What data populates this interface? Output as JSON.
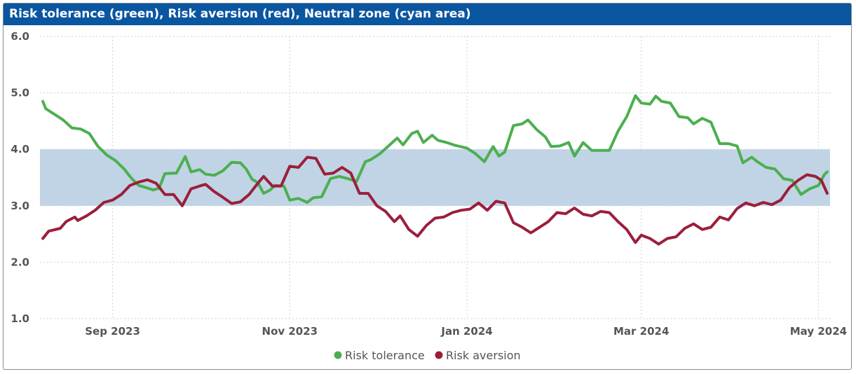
{
  "chart_data": {
    "type": "line",
    "title": "Risk tolerance (green), Risk aversion (red), Neutral zone (cyan area)",
    "ylim": [
      1.0,
      6.0
    ],
    "y_ticks": [
      "6.0",
      "5.0",
      "4.0",
      "3.0",
      "2.0",
      "1.0"
    ],
    "x_range": [
      "2023-08-07",
      "2024-05-05"
    ],
    "x_ticks": [
      {
        "label": "Sep 2023",
        "date": "2023-09-01"
      },
      {
        "label": "Nov 2023",
        "date": "2023-11-01"
      },
      {
        "label": "Jan 2024",
        "date": "2024-01-01"
      },
      {
        "label": "Mar 2024",
        "date": "2024-03-01"
      },
      {
        "label": "May 2024",
        "date": "2024-05-01"
      }
    ],
    "grid": true,
    "legend_position": "bottom-center",
    "neutral_zone": {
      "y_low": 3.0,
      "y_high": 4.0,
      "color": "#c0d4e6"
    },
    "series": [
      {
        "name": "Risk tolerance",
        "color": "#4caf50",
        "points": [
          [
            "2023-08-08",
            4.85
          ],
          [
            "2023-08-09",
            4.72
          ],
          [
            "2023-08-12",
            4.62
          ],
          [
            "2023-08-15",
            4.52
          ],
          [
            "2023-08-18",
            4.38
          ],
          [
            "2023-08-21",
            4.36
          ],
          [
            "2023-08-24",
            4.28
          ],
          [
            "2023-08-27",
            4.05
          ],
          [
            "2023-08-30",
            3.9
          ],
          [
            "2023-09-02",
            3.8
          ],
          [
            "2023-09-05",
            3.65
          ],
          [
            "2023-09-07",
            3.52
          ],
          [
            "2023-09-08",
            3.46
          ],
          [
            "2023-09-10",
            3.36
          ],
          [
            "2023-09-12",
            3.33
          ],
          [
            "2023-09-15",
            3.28
          ],
          [
            "2023-09-17",
            3.31
          ],
          [
            "2023-09-19",
            3.57
          ],
          [
            "2023-09-23",
            3.58
          ],
          [
            "2023-09-26",
            3.87
          ],
          [
            "2023-09-28",
            3.6
          ],
          [
            "2023-10-01",
            3.64
          ],
          [
            "2023-10-03",
            3.56
          ],
          [
            "2023-10-06",
            3.54
          ],
          [
            "2023-10-09",
            3.62
          ],
          [
            "2023-10-12",
            3.77
          ],
          [
            "2023-10-15",
            3.76
          ],
          [
            "2023-10-17",
            3.65
          ],
          [
            "2023-10-19",
            3.47
          ],
          [
            "2023-10-21",
            3.41
          ],
          [
            "2023-10-23",
            3.22
          ],
          [
            "2023-10-25",
            3.27
          ],
          [
            "2023-10-27",
            3.36
          ],
          [
            "2023-10-30",
            3.35
          ],
          [
            "2023-11-01",
            3.1
          ],
          [
            "2023-11-04",
            3.13
          ],
          [
            "2023-11-07",
            3.06
          ],
          [
            "2023-11-09",
            3.14
          ],
          [
            "2023-11-12",
            3.16
          ],
          [
            "2023-11-15",
            3.48
          ],
          [
            "2023-11-18",
            3.52
          ],
          [
            "2023-11-21",
            3.48
          ],
          [
            "2023-11-24",
            3.43
          ],
          [
            "2023-11-27",
            3.78
          ],
          [
            "2023-11-29",
            3.82
          ],
          [
            "2023-12-02",
            3.92
          ],
          [
            "2023-12-05",
            4.06
          ],
          [
            "2023-12-08",
            4.2
          ],
          [
            "2023-12-10",
            4.08
          ],
          [
            "2023-12-13",
            4.28
          ],
          [
            "2023-12-15",
            4.32
          ],
          [
            "2023-12-17",
            4.12
          ],
          [
            "2023-12-20",
            4.25
          ],
          [
            "2023-12-22",
            4.16
          ],
          [
            "2023-12-25",
            4.12
          ],
          [
            "2023-12-28",
            4.07
          ],
          [
            "2024-01-01",
            4.02
          ],
          [
            "2024-01-04",
            3.92
          ],
          [
            "2024-01-07",
            3.78
          ],
          [
            "2024-01-10",
            4.05
          ],
          [
            "2024-01-12",
            3.88
          ],
          [
            "2024-01-14",
            3.95
          ],
          [
            "2024-01-17",
            4.42
          ],
          [
            "2024-01-20",
            4.45
          ],
          [
            "2024-01-22",
            4.52
          ],
          [
            "2024-01-25",
            4.35
          ],
          [
            "2024-01-28",
            4.22
          ],
          [
            "2024-01-30",
            4.05
          ],
          [
            "2024-02-02",
            4.06
          ],
          [
            "2024-02-05",
            4.12
          ],
          [
            "2024-02-07",
            3.88
          ],
          [
            "2024-02-10",
            4.12
          ],
          [
            "2024-02-13",
            3.98
          ],
          [
            "2024-02-16",
            3.98
          ],
          [
            "2024-02-19",
            3.98
          ],
          [
            "2024-02-22",
            4.32
          ],
          [
            "2024-02-25",
            4.58
          ],
          [
            "2024-02-28",
            4.95
          ],
          [
            "2024-03-01",
            4.82
          ],
          [
            "2024-03-04",
            4.8
          ],
          [
            "2024-03-06",
            4.94
          ],
          [
            "2024-03-08",
            4.85
          ],
          [
            "2024-03-11",
            4.82
          ],
          [
            "2024-03-14",
            4.58
          ],
          [
            "2024-03-17",
            4.56
          ],
          [
            "2024-03-19",
            4.45
          ],
          [
            "2024-03-22",
            4.55
          ],
          [
            "2024-03-25",
            4.48
          ],
          [
            "2024-03-28",
            4.1
          ],
          [
            "2024-03-31",
            4.1
          ],
          [
            "2024-04-03",
            4.06
          ],
          [
            "2024-04-05",
            3.76
          ],
          [
            "2024-04-08",
            3.86
          ],
          [
            "2024-04-10",
            3.78
          ],
          [
            "2024-04-13",
            3.68
          ],
          [
            "2024-04-16",
            3.65
          ],
          [
            "2024-04-19",
            3.48
          ],
          [
            "2024-04-22",
            3.45
          ],
          [
            "2024-04-25",
            3.2
          ],
          [
            "2024-04-28",
            3.3
          ],
          [
            "2024-05-01",
            3.36
          ],
          [
            "2024-05-03",
            3.55
          ],
          [
            "2024-05-04",
            3.6
          ]
        ]
      },
      {
        "name": "Risk aversion",
        "color": "#9b1f3a",
        "points": [
          [
            "2023-08-08",
            2.42
          ],
          [
            "2023-08-10",
            2.55
          ],
          [
            "2023-08-14",
            2.6
          ],
          [
            "2023-08-16",
            2.72
          ],
          [
            "2023-08-19",
            2.8
          ],
          [
            "2023-08-20",
            2.74
          ],
          [
            "2023-08-23",
            2.82
          ],
          [
            "2023-08-26",
            2.92
          ],
          [
            "2023-08-29",
            3.06
          ],
          [
            "2023-09-01",
            3.1
          ],
          [
            "2023-09-04",
            3.2
          ],
          [
            "2023-09-07",
            3.36
          ],
          [
            "2023-09-10",
            3.42
          ],
          [
            "2023-09-13",
            3.46
          ],
          [
            "2023-09-16",
            3.4
          ],
          [
            "2023-09-19",
            3.2
          ],
          [
            "2023-09-22",
            3.2
          ],
          [
            "2023-09-25",
            3.0
          ],
          [
            "2023-09-28",
            3.3
          ],
          [
            "2023-10-01",
            3.35
          ],
          [
            "2023-10-03",
            3.38
          ],
          [
            "2023-10-06",
            3.25
          ],
          [
            "2023-10-09",
            3.15
          ],
          [
            "2023-10-12",
            3.04
          ],
          [
            "2023-10-15",
            3.07
          ],
          [
            "2023-10-18",
            3.2
          ],
          [
            "2023-10-21",
            3.4
          ],
          [
            "2023-10-23",
            3.52
          ],
          [
            "2023-10-26",
            3.35
          ],
          [
            "2023-10-29",
            3.35
          ],
          [
            "2023-11-01",
            3.7
          ],
          [
            "2023-11-04",
            3.68
          ],
          [
            "2023-11-07",
            3.86
          ],
          [
            "2023-11-10",
            3.84
          ],
          [
            "2023-11-13",
            3.56
          ],
          [
            "2023-11-16",
            3.58
          ],
          [
            "2023-11-19",
            3.68
          ],
          [
            "2023-11-22",
            3.58
          ],
          [
            "2023-11-25",
            3.22
          ],
          [
            "2023-11-28",
            3.22
          ],
          [
            "2023-12-01",
            3.0
          ],
          [
            "2023-12-04",
            2.9
          ],
          [
            "2023-12-07",
            2.72
          ],
          [
            "2023-12-09",
            2.82
          ],
          [
            "2023-12-12",
            2.58
          ],
          [
            "2023-12-15",
            2.46
          ],
          [
            "2023-12-18",
            2.65
          ],
          [
            "2023-12-21",
            2.78
          ],
          [
            "2023-12-24",
            2.8
          ],
          [
            "2023-12-27",
            2.88
          ],
          [
            "2023-12-30",
            2.92
          ],
          [
            "2024-01-02",
            2.94
          ],
          [
            "2024-01-05",
            3.05
          ],
          [
            "2024-01-08",
            2.92
          ],
          [
            "2024-01-11",
            3.08
          ],
          [
            "2024-01-14",
            3.05
          ],
          [
            "2024-01-17",
            2.7
          ],
          [
            "2024-01-20",
            2.62
          ],
          [
            "2024-01-23",
            2.52
          ],
          [
            "2024-01-26",
            2.62
          ],
          [
            "2024-01-29",
            2.72
          ],
          [
            "2024-02-01",
            2.88
          ],
          [
            "2024-02-04",
            2.86
          ],
          [
            "2024-02-07",
            2.96
          ],
          [
            "2024-02-10",
            2.85
          ],
          [
            "2024-02-13",
            2.82
          ],
          [
            "2024-02-16",
            2.9
          ],
          [
            "2024-02-19",
            2.88
          ],
          [
            "2024-02-22",
            2.72
          ],
          [
            "2024-02-25",
            2.58
          ],
          [
            "2024-02-28",
            2.35
          ],
          [
            "2024-03-01",
            2.48
          ],
          [
            "2024-03-04",
            2.42
          ],
          [
            "2024-03-07",
            2.32
          ],
          [
            "2024-03-10",
            2.42
          ],
          [
            "2024-03-13",
            2.45
          ],
          [
            "2024-03-16",
            2.6
          ],
          [
            "2024-03-19",
            2.68
          ],
          [
            "2024-03-22",
            2.58
          ],
          [
            "2024-03-25",
            2.62
          ],
          [
            "2024-03-28",
            2.8
          ],
          [
            "2024-03-31",
            2.75
          ],
          [
            "2024-04-03",
            2.95
          ],
          [
            "2024-04-06",
            3.05
          ],
          [
            "2024-04-09",
            3.0
          ],
          [
            "2024-04-12",
            3.06
          ],
          [
            "2024-04-15",
            3.02
          ],
          [
            "2024-04-18",
            3.1
          ],
          [
            "2024-04-21",
            3.32
          ],
          [
            "2024-04-24",
            3.45
          ],
          [
            "2024-04-27",
            3.55
          ],
          [
            "2024-04-30",
            3.52
          ],
          [
            "2024-05-02",
            3.45
          ],
          [
            "2024-05-04",
            3.22
          ]
        ]
      }
    ]
  }
}
